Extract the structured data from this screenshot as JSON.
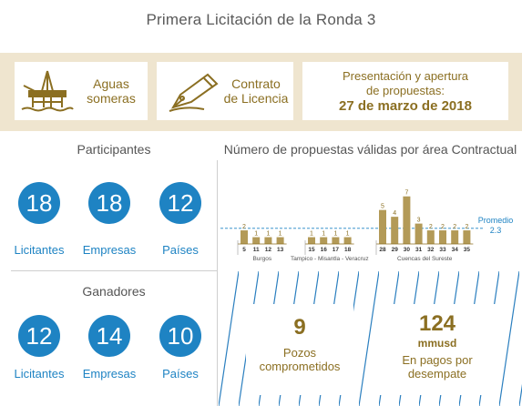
{
  "title": "Primera Licitación de la Ronda 3",
  "cards": {
    "water": "Aguas\nsomeras",
    "contract": "Contrato\nde Licencia",
    "presentation": "Presentación y apertura\nde propuestas:",
    "date": "27 de marzo de 2018"
  },
  "participantes": {
    "title": "Participantes",
    "stats": [
      {
        "value": "18",
        "label": "Licitantes"
      },
      {
        "value": "18",
        "label": "Empresas"
      },
      {
        "value": "12",
        "label": "Países"
      }
    ]
  },
  "ganadores": {
    "title": "Ganadores",
    "stats": [
      {
        "value": "12",
        "label": "Licitantes"
      },
      {
        "value": "14",
        "label": "Empresas"
      },
      {
        "value": "10",
        "label": "Países"
      }
    ]
  },
  "wins": {
    "pozos": {
      "value": "9",
      "label": "Pozos\ncomprometidos"
    },
    "pagos": {
      "value": "124",
      "unit": "mmusd",
      "label": "En pagos por\ndesempate"
    }
  },
  "colors": {
    "gold": "#8b6f22",
    "bar": "#b39a57",
    "blue": "#1e83c3",
    "band": "#efe5cf"
  },
  "chart_data": {
    "type": "bar",
    "title": "Número de propuestas válidas por área Contractual",
    "categories": [
      "5",
      "11",
      "12",
      "13",
      "15",
      "16",
      "17",
      "18",
      "28",
      "29",
      "30",
      "31",
      "32",
      "33",
      "34",
      "35"
    ],
    "values": [
      2,
      1,
      1,
      1,
      1,
      1,
      1,
      1,
      5,
      4,
      7,
      3,
      2,
      2,
      2,
      2
    ],
    "groups": [
      {
        "name": "Burgos",
        "categories": [
          "5",
          "11",
          "12",
          "13"
        ]
      },
      {
        "name": "Tampico - Misantla - Veracruz",
        "categories": [
          "15",
          "16",
          "17",
          "18"
        ]
      },
      {
        "name": "Cuencas del Sureste",
        "categories": [
          "28",
          "29",
          "30",
          "31",
          "32",
          "33",
          "34",
          "35"
        ]
      }
    ],
    "reference_line": {
      "label": "Promedio",
      "value": 2.3
    },
    "ylim": [
      0,
      7.5
    ]
  }
}
